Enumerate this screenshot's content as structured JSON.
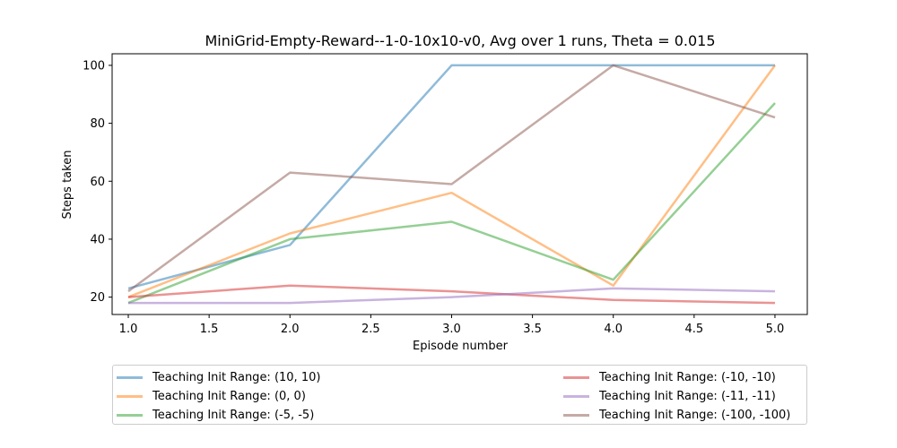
{
  "chart_data": {
    "type": "line",
    "title": "MiniGrid-Empty-Reward--1-0-10x10-v0, Avg over 1 runs, Theta = 0.015",
    "xlabel": "Episode number",
    "ylabel": "Steps taken",
    "xlim": [
      0.9,
      5.2
    ],
    "ylim": [
      14,
      104
    ],
    "xticks": [
      "1.0",
      "1.5",
      "2.0",
      "2.5",
      "3.0",
      "3.5",
      "4.0",
      "4.5",
      "5.0"
    ],
    "yticks": [
      "20",
      "40",
      "60",
      "80",
      "100"
    ],
    "grid": false,
    "legend_placement": "below",
    "x": [
      1,
      2,
      3,
      4,
      5
    ],
    "series": [
      {
        "name": "Teaching Init Range: (10, 10)",
        "color": "#1f77b4",
        "values": [
          23,
          38,
          100,
          100,
          100
        ]
      },
      {
        "name": "Teaching Init Range: (0, 0)",
        "color": "#ff7f0e",
        "values": [
          20,
          42,
          56,
          24,
          100
        ]
      },
      {
        "name": "Teaching Init Range: (-5, -5)",
        "color": "#2ca02c",
        "values": [
          18,
          40,
          46,
          26,
          87
        ]
      },
      {
        "name": "Teaching Init Range: (-10, -10)",
        "color": "#d62728",
        "values": [
          20,
          24,
          22,
          19,
          18
        ]
      },
      {
        "name": "Teaching Init Range: (-11, -11)",
        "color": "#9467bd",
        "values": [
          18,
          18,
          20,
          23,
          22
        ]
      },
      {
        "name": "Teaching Init Range: (-100, -100)",
        "color": "#8c564b",
        "values": [
          22,
          63,
          59,
          100,
          82
        ]
      }
    ]
  }
}
